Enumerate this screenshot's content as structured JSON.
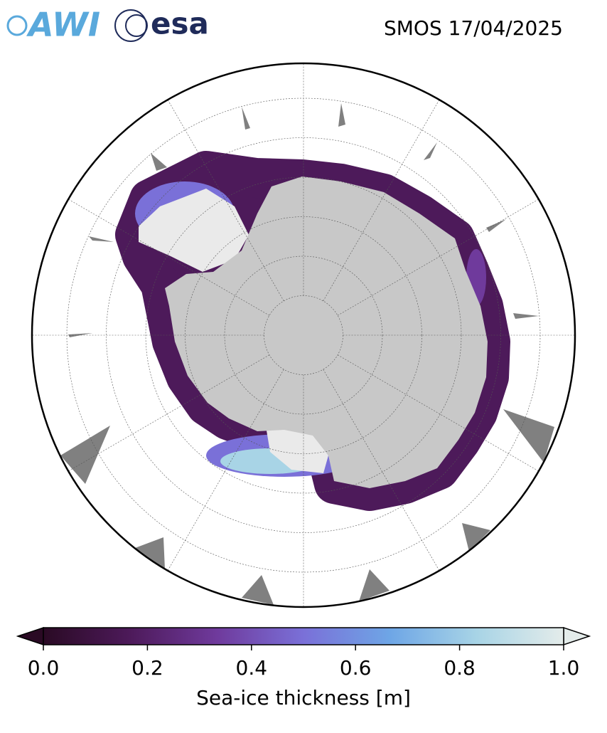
{
  "header": {
    "logos": [
      "AWI",
      "esa"
    ],
    "title": "SMOS 17/04/2025"
  },
  "colorbar": {
    "label": "Sea-ice thickness [m]",
    "lim": [
      0,
      1
    ],
    "ticks": [
      {
        "value": 0,
        "label": "0.0"
      },
      0.2,
      0.4,
      0.6,
      0.8,
      {
        "value": 1,
        "label": "1.0"
      }
    ],
    "colors": [
      "#2a0a24",
      "#4d1a5a",
      "#6f3a9c",
      "#7a70d8",
      "#6ea6e6",
      "#a8d4e6",
      "#e4ecea"
    ],
    "extend": "both"
  }
}
